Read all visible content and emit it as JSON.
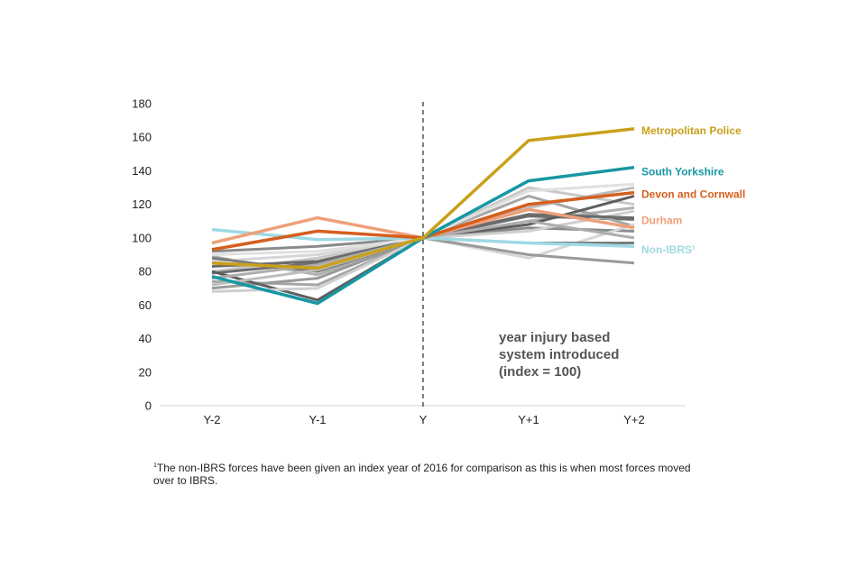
{
  "chart_data": {
    "type": "line",
    "title": "",
    "xlabel": "",
    "ylabel": "",
    "categories": [
      "Y-2",
      "Y-1",
      "Y",
      "Y+1",
      "Y+2"
    ],
    "ylim": [
      0,
      180
    ],
    "yticks": [
      0,
      20,
      40,
      60,
      80,
      100,
      120,
      140,
      160,
      180
    ],
    "grid": false,
    "marker_category": "Y",
    "annotation_lines": [
      "year injury based",
      "system introduced",
      "(index = 100)"
    ],
    "background_series": [
      {
        "color": "#b0b0b0",
        "values": [
          89,
          78,
          100,
          110,
          118
        ]
      },
      {
        "color": "#c8c8c8",
        "values": [
          80,
          88,
          100,
          130,
          120
        ]
      },
      {
        "color": "#8a8a8a",
        "values": [
          92,
          95,
          100,
          106,
          104
        ]
      },
      {
        "color": "#6e6e6e",
        "values": [
          79,
          85,
          100,
          113,
          111
        ]
      },
      {
        "color": "#a6a6a6",
        "values": [
          74,
          72,
          100,
          125,
          107
        ]
      },
      {
        "color": "#d6d6d6",
        "values": [
          86,
          90,
          100,
          88,
          108
        ]
      },
      {
        "color": "#9a9a9a",
        "values": [
          70,
          76,
          100,
          90,
          85
        ]
      },
      {
        "color": "#7c7c7c",
        "values": [
          88,
          80,
          100,
          97,
          97
        ]
      },
      {
        "color": "#5e5e5e",
        "values": [
          80,
          63,
          100,
          108,
          125
        ]
      },
      {
        "color": "#bdbdbd",
        "values": [
          72,
          81,
          100,
          118,
          130
        ]
      },
      {
        "color": "#cfcfcf",
        "values": [
          68,
          70,
          100,
          104,
          116
        ]
      },
      {
        "color": "#6b6b6b",
        "values": [
          83,
          86,
          100,
          114,
          112
        ]
      },
      {
        "color": "#e0e0e0",
        "values": [
          90,
          92,
          100,
          128,
          132
        ]
      },
      {
        "color": "#adadad",
        "values": [
          76,
          84,
          100,
          110,
          100
        ]
      }
    ],
    "series": [
      {
        "name": "Non-IBRS¹",
        "color": "#9fd9e3",
        "values": [
          105,
          99,
          100,
          97,
          95
        ]
      },
      {
        "name": "Durham",
        "color": "#eea07a",
        "values": [
          97,
          112,
          100,
          117,
          106
        ]
      },
      {
        "name": "Devon and Cornwall",
        "color": "#d45f1e",
        "values": [
          93,
          104,
          100,
          120,
          127
        ]
      },
      {
        "name": "South Yorkshire",
        "color": "#1797a3",
        "values": [
          77,
          61,
          100,
          134,
          142
        ]
      },
      {
        "name": "Metropolitan Police",
        "color": "#c9a01b",
        "values": [
          85,
          82,
          100,
          158,
          165
        ]
      }
    ]
  },
  "footnote": {
    "marker": "1",
    "text": "The non-IBRS forces have been given an index year of 2016 for comparison as this is when most forces moved over to IBRS."
  }
}
